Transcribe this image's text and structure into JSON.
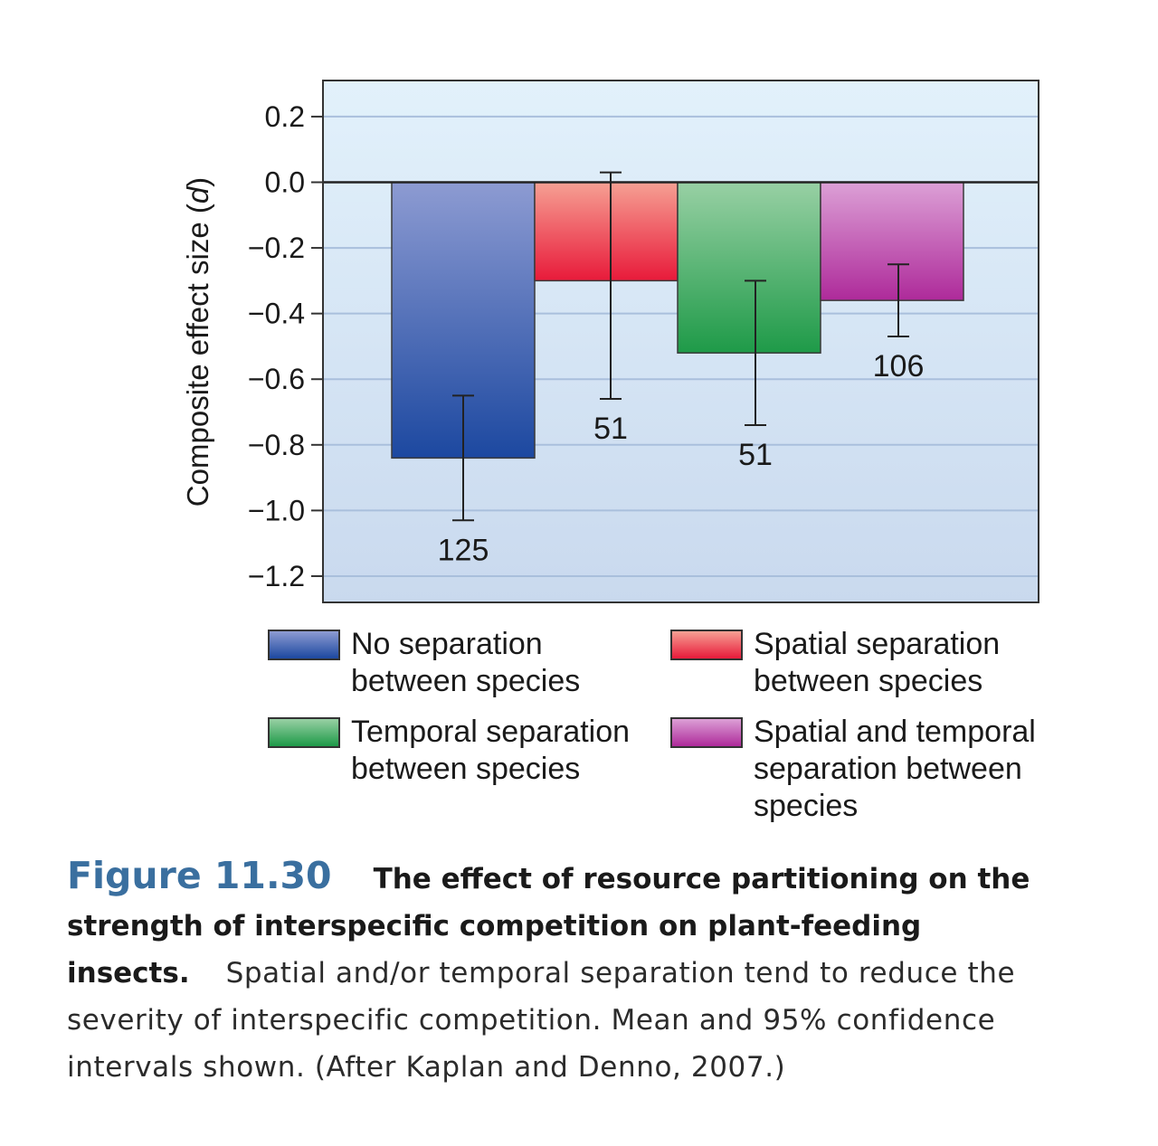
{
  "chart_data": {
    "type": "bar",
    "ylabel": "Composite effect size (d)",
    "ylabel_main": "Composite effect size (",
    "ylabel_var": "d",
    "ylabel_close": ")",
    "ylim": [
      -1.28,
      0.31
    ],
    "yticks": [
      0.2,
      0.0,
      -0.2,
      -0.4,
      -0.6,
      -0.8,
      -1.0,
      -1.2
    ],
    "ytick_labels": [
      "0.2",
      "0.0",
      "−0.2",
      "−0.4",
      "−0.6",
      "−0.8",
      "−1.0",
      "−1.2"
    ],
    "grid": true,
    "legend_placement": "below",
    "categories": [
      "No separation between species",
      "Spatial separation between species",
      "Temporal separation between species",
      "Spatial and temporal separation between species"
    ],
    "series": [
      {
        "category": "No separation between species",
        "value": -0.84,
        "ci_low": -1.03,
        "ci_high": -0.65,
        "n": "125",
        "color_top": "#8d9bd2",
        "color_bottom": "#1c48a0"
      },
      {
        "category": "Spatial separation between species",
        "value": -0.3,
        "ci_low": -0.66,
        "ci_high": 0.03,
        "n": "51",
        "color_top": "#f6a093",
        "color_bottom": "#e81a3a"
      },
      {
        "category": "Temporal separation between species",
        "value": -0.52,
        "ci_low": -0.74,
        "ci_high": -0.3,
        "n": "51",
        "color_top": "#98d0a4",
        "color_bottom": "#1e9a48"
      },
      {
        "category": "Spatial and temporal separation between species",
        "value": -0.36,
        "ci_low": -0.47,
        "ci_high": -0.25,
        "n": "106",
        "color_top": "#dca0d6",
        "color_bottom": "#ae2a9a"
      }
    ]
  },
  "legend": [
    {
      "line1": "No separation",
      "line2": "between species",
      "line3": "",
      "color": "#3e5fb5"
    },
    {
      "line1": "Spatial separation",
      "line2": "between species",
      "line3": "",
      "color": "#ef4555"
    },
    {
      "line1": "Temporal separation",
      "line2": "between species",
      "line3": "",
      "color": "#2ea356"
    },
    {
      "line1": "Spatial and temporal",
      "line2": "separation between",
      "line3": "species",
      "color": "#b845a8"
    }
  ],
  "caption": {
    "figure_number": "Figure 11.30",
    "title": "The effect of resource partitioning on the strength of interspecific competition on plant-feeding insects.",
    "body": "Spatial and/or temporal separation tend to reduce the severity of interspecific competition. Mean and 95% confidence intervals shown. (After Kaplan and Denno, 2007.)"
  }
}
